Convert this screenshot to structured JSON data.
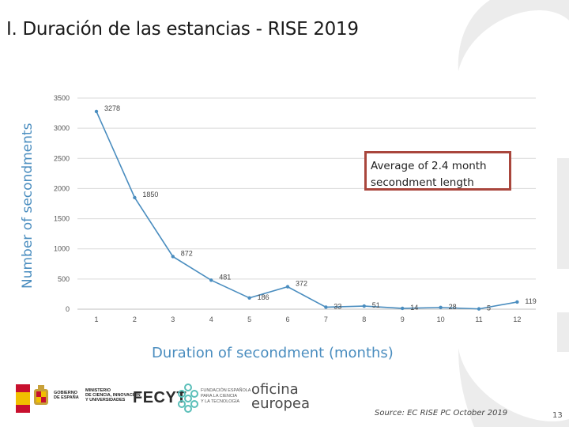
{
  "slide": {
    "title": "I. Duración de las estancias - RISE 2019",
    "callout": "Average of 2.4 month secondment length",
    "source": "Source: EC RISE PC October 2019",
    "page_number": "13"
  },
  "logos": {
    "gobierno": [
      "GOBIERNO",
      "DE ESPAÑA"
    ],
    "ministerio": [
      "MINISTERIO",
      "DE CIENCIA, INNOVACIÓN",
      "Y UNIVERSIDADES"
    ],
    "fecyt": "FECYT",
    "fecyt_sub": [
      "FUNDACIÓN ESPAÑOLA",
      "PARA LA CIENCIA",
      "Y LA TECNOLOGÍA"
    ],
    "oficina": [
      "oficina",
      "europea"
    ]
  },
  "colors": {
    "series": "#4a8dbf",
    "axis_title": "#4a8dbf",
    "callout_border": "#a9463c"
  },
  "chart_data": {
    "type": "line",
    "title": "",
    "xlabel": "Duration of secondment (months)",
    "ylabel": "Number of secondments",
    "x": [
      1,
      2,
      3,
      4,
      5,
      6,
      7,
      8,
      9,
      10,
      11,
      12
    ],
    "values": [
      3278,
      1850,
      872,
      481,
      186,
      372,
      33,
      51,
      14,
      28,
      5,
      119
    ],
    "data_labels": [
      "3278",
      "1850",
      "872",
      "481",
      "186",
      "372",
      "33",
      "51",
      "14",
      "28",
      "5",
      "119"
    ],
    "yticks": [
      0,
      500,
      1000,
      1500,
      2000,
      2500,
      3000,
      3500
    ],
    "ytick_labels": [
      "0",
      "500",
      "1000",
      "1500",
      "2000",
      "2500",
      "3000",
      "3500"
    ],
    "xtick_labels": [
      "1",
      "2",
      "3",
      "4",
      "5",
      "6",
      "7",
      "8",
      "9",
      "10",
      "11",
      "12"
    ],
    "ylim": [
      0,
      3500
    ],
    "grid": true,
    "legend": "none"
  }
}
